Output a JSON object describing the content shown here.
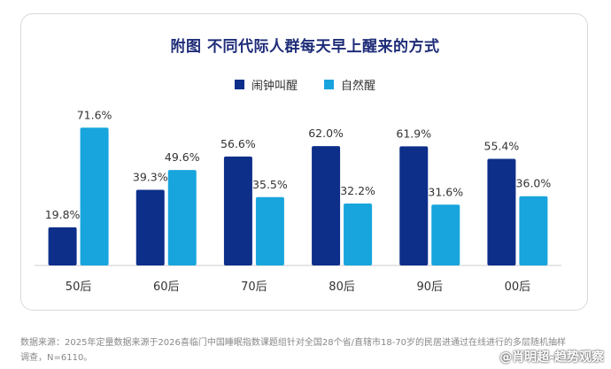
{
  "chart_data": {
    "type": "bar",
    "title": "附图  不同代际人群每天早上醒来的方式",
    "categories": [
      "50后",
      "60后",
      "70后",
      "80后",
      "90后",
      "00后"
    ],
    "series": [
      {
        "name": "闹钟叫醒",
        "values": [
          19.8,
          39.3,
          56.6,
          62.0,
          61.9,
          55.4
        ],
        "labels": [
          "19.8%",
          "39.3%",
          "56.6%",
          "62.0%",
          "61.9%",
          "55.4%"
        ],
        "color": "#0d2f8a"
      },
      {
        "name": "自然醒",
        "values": [
          71.6,
          49.6,
          35.5,
          32.2,
          31.6,
          36.0
        ],
        "labels": [
          "71.6%",
          "49.6%",
          "35.5%",
          "32.2%",
          "31.6%",
          "36.0%"
        ],
        "color": "#18a5dd"
      }
    ],
    "ylim": [
      0,
      80
    ],
    "grid": false,
    "legend_position": "top-center"
  },
  "footnote": {
    "line1": "数据来源：2025年定量数据来源于2026喜临门中国睡眠指数课题组针对全国28个省/直辖市18-70岁的民居进通过在线进行的多层随机抽样",
    "line2": "调查，N=6110。"
  },
  "watermark": "@肖明超-趋势观察",
  "colors": {
    "title": "#1e2c78",
    "axis": "#cccccc"
  }
}
